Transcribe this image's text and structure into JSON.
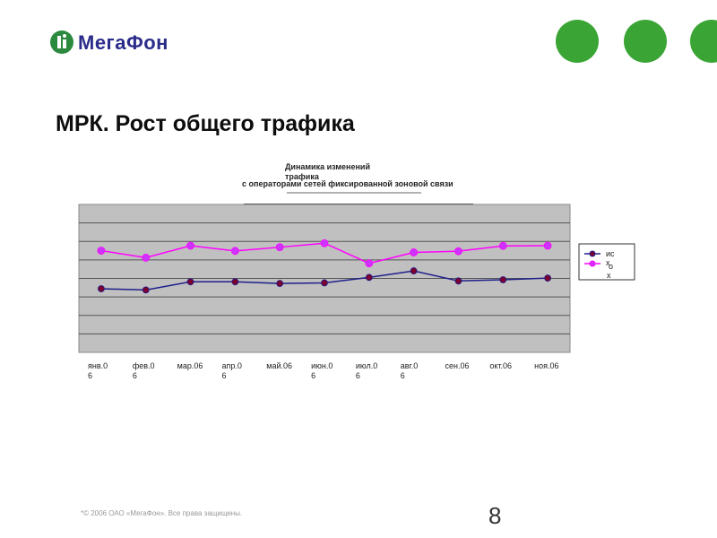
{
  "logo": {
    "text": "МегаФон",
    "mark_color": "#2b8a3e",
    "text_color": "#2b2b8a"
  },
  "decor_dots": {
    "color": "#3aa535",
    "count": 3
  },
  "slide": {
    "title": "МРК. Рост общего трафика",
    "page_number": "8"
  },
  "footer": {
    "copyright": "*© 2006 ОАО «МегаФон». Все права защищены."
  },
  "chart_data": {
    "type": "line",
    "title_lines": [
      "Динамика изменений",
      "трафика"
    ],
    "subtitle": "с операторами сетей фиксированной зоновой связи",
    "categories": [
      [
        "янв.0",
        "6"
      ],
      [
        "фев.0",
        "6"
      ],
      [
        "мар.06"
      ],
      [
        "апр.0",
        "6"
      ],
      [
        "май.06"
      ],
      [
        "июн.0",
        "6"
      ],
      [
        "июл.0",
        "6"
      ],
      [
        "авг.0",
        "6"
      ],
      [
        "сен.06"
      ],
      [
        "окт.06"
      ],
      [
        "ноя.06"
      ]
    ],
    "series": [
      {
        "name": "ис",
        "color": "#1f1f8c",
        "marker_color": "#7a0030",
        "values": [
          43.0,
          42.2,
          47.7,
          47.7,
          46.6,
          47.0,
          50.7,
          55.1,
          48.3,
          49.1,
          50.2
        ]
      },
      {
        "name": "вх",
        "color": "#ff00ff",
        "marker_color": "#cc33ff",
        "values": [
          68.8,
          64.0,
          72.1,
          68.6,
          71.1,
          73.8,
          60.2,
          67.6,
          68.4,
          72.0,
          72.1
        ]
      }
    ],
    "legend_lines": [
      [
        "ис"
      ],
      [
        "х",
        "о",
        "х"
      ]
    ],
    "ylim": [
      0,
      100
    ],
    "gridlines": 8,
    "plot_background": "#c0c0c0",
    "legend": "right"
  }
}
